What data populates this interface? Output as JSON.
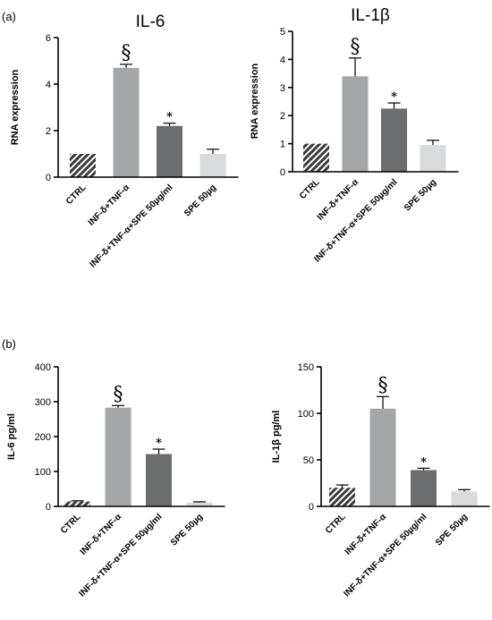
{
  "panels": [
    "(a)",
    "(b)"
  ],
  "colors": {
    "hatched": "#3a3a3a",
    "bar_light_gray": "#a4a6a8",
    "bar_dark_gray": "#6c6d6e",
    "bar_pale_gray": "#d9dadb"
  },
  "chart_data": [
    {
      "type": "bar",
      "panel": "(a)",
      "title": "IL-6",
      "xlabel": "",
      "ylabel": "RNA expression",
      "ylim": [
        0,
        6
      ],
      "yticks": [
        "0",
        "2",
        "4",
        "6"
      ],
      "categories": [
        "CTRL",
        "INF-δ+TNF-α",
        "INF-δ+TNF-α+SPE 50µg/ml",
        "SPE 50µg"
      ],
      "values": [
        1.0,
        4.7,
        2.2,
        1.0
      ],
      "errors": [
        0.0,
        0.15,
        0.12,
        0.2
      ],
      "annotations": [
        "",
        "§",
        "*",
        ""
      ]
    },
    {
      "type": "bar",
      "panel": "(a)",
      "title": "IL-1β",
      "xlabel": "",
      "ylabel": "RNA expression",
      "ylim": [
        0,
        5
      ],
      "yticks": [
        "0",
        "1",
        "2",
        "3",
        "4",
        "5"
      ],
      "categories": [
        "CTRL",
        "INF-δ+TNF-α",
        "INF-δ+TNF-α+SPE 50µg/ml",
        "SPE 50µg"
      ],
      "values": [
        1.0,
        3.4,
        2.25,
        0.95
      ],
      "errors": [
        0.0,
        0.65,
        0.2,
        0.17
      ],
      "annotations": [
        "",
        "§",
        "*",
        ""
      ]
    },
    {
      "type": "bar",
      "panel": "(b)",
      "title": "",
      "xlabel": "",
      "ylabel": "IL-6 pg/ml",
      "ylim": [
        0,
        400
      ],
      "yticks": [
        "0",
        "100",
        "200",
        "300",
        "400"
      ],
      "categories": [
        "CTRL",
        "INF-δ+TNF-α",
        "INF-δ+TNF-α+SPE 50µg/ml",
        "SPE 50µg"
      ],
      "values": [
        14,
        283,
        150,
        11
      ],
      "errors": [
        2,
        6,
        14,
        2
      ],
      "annotations": [
        "",
        "§",
        "*",
        ""
      ]
    },
    {
      "type": "bar",
      "panel": "(b)",
      "title": "",
      "xlabel": "",
      "ylabel": "IL-1β pg/ml",
      "ylim": [
        0,
        150
      ],
      "yticks": [
        "0",
        "50",
        "100",
        "150"
      ],
      "categories": [
        "CTRL",
        "INF-δ+TNF-α",
        "INF-δ+TNF-α+SPE 50µg/ml",
        "SPE 50µg"
      ],
      "values": [
        20,
        105,
        39,
        16
      ],
      "errors": [
        3,
        13,
        2,
        2
      ],
      "annotations": [
        "",
        "§",
        "*",
        ""
      ]
    }
  ]
}
